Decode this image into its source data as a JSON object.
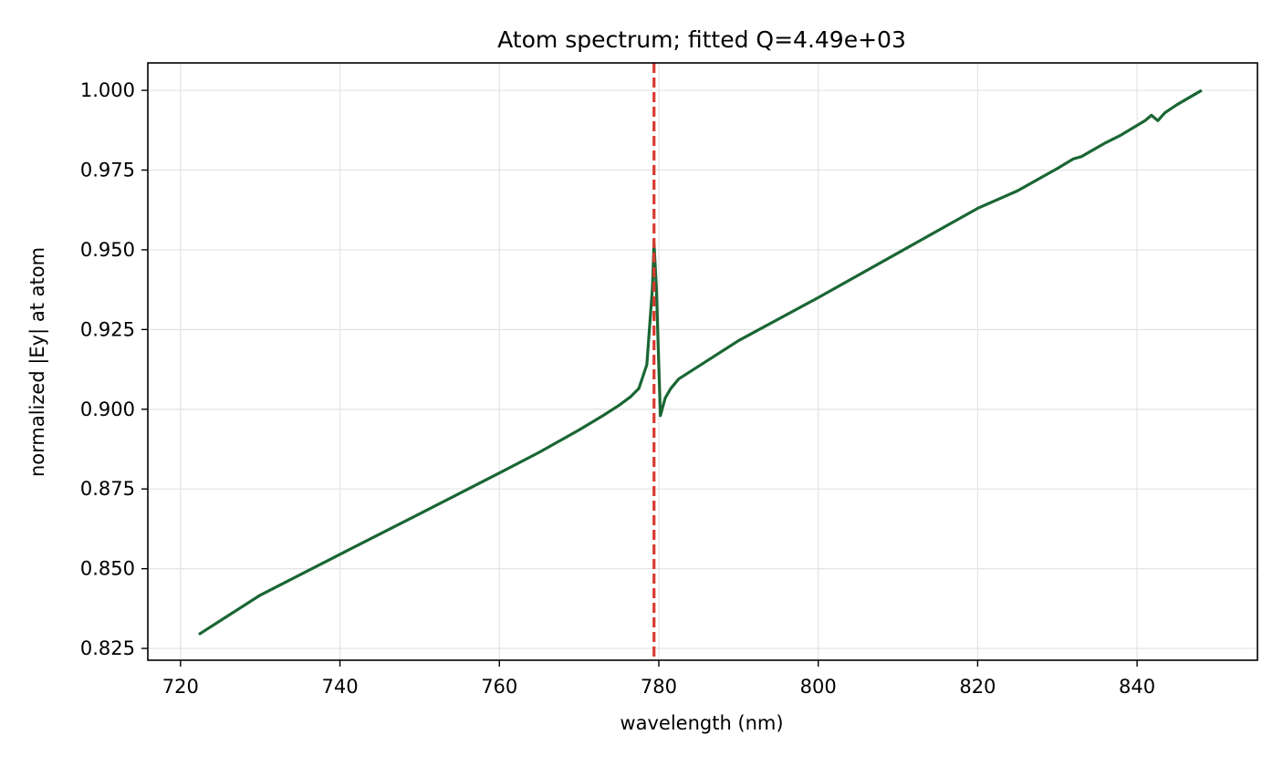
{
  "chart_data": {
    "type": "line",
    "title": "Atom spectrum; fitted Q=4.49e+03",
    "xlabel": "wavelength (nm)",
    "ylabel": "normalized |Ey| at atom",
    "xlim": [
      715.9,
      855.1
    ],
    "ylim": [
      0.8213,
      1.0086
    ],
    "xticks": [
      720,
      740,
      760,
      780,
      800,
      820,
      840
    ],
    "xtick_labels": [
      "720",
      "740",
      "760",
      "780",
      "800",
      "820",
      "840"
    ],
    "yticks": [
      0.825,
      0.85,
      0.875,
      0.9,
      0.925,
      0.95,
      0.975,
      1.0
    ],
    "ytick_labels": [
      "0.825",
      "0.850",
      "0.875",
      "0.900",
      "0.925",
      "0.950",
      "0.975",
      "1.000"
    ],
    "grid": true,
    "series": [
      {
        "color": "#1a6634",
        "style": "solid",
        "points": [
          [
            722.3,
            0.8294
          ],
          [
            730,
            0.8417
          ],
          [
            740,
            0.8545
          ],
          [
            750,
            0.8672
          ],
          [
            760,
            0.88
          ],
          [
            765,
            0.8865
          ],
          [
            770,
            0.8935
          ],
          [
            773,
            0.898
          ],
          [
            775,
            0.9012
          ],
          [
            776.5,
            0.904
          ],
          [
            777.5,
            0.9065
          ],
          [
            778.5,
            0.914
          ],
          [
            779.2,
            0.938
          ],
          [
            779.4,
            0.952
          ],
          [
            779.7,
            0.938
          ],
          [
            780.2,
            0.898
          ],
          [
            780.8,
            0.9035
          ],
          [
            781.5,
            0.9065
          ],
          [
            782.5,
            0.9095
          ],
          [
            785,
            0.9135
          ],
          [
            790,
            0.9215
          ],
          [
            800,
            0.935
          ],
          [
            810,
            0.949
          ],
          [
            820,
            0.963
          ],
          [
            825,
            0.9685
          ],
          [
            830,
            0.9755
          ],
          [
            832,
            0.9785
          ],
          [
            833,
            0.9792
          ],
          [
            836,
            0.9835
          ],
          [
            838,
            0.986
          ],
          [
            840,
            0.989
          ],
          [
            841,
            0.9905
          ],
          [
            841.8,
            0.9922
          ],
          [
            842.6,
            0.9905
          ],
          [
            843.5,
            0.993
          ],
          [
            845,
            0.9955
          ],
          [
            848.1,
            1.0
          ]
        ]
      },
      {
        "color": "#d93a2e",
        "style": "dashed",
        "vline_x": 779.4
      }
    ]
  }
}
